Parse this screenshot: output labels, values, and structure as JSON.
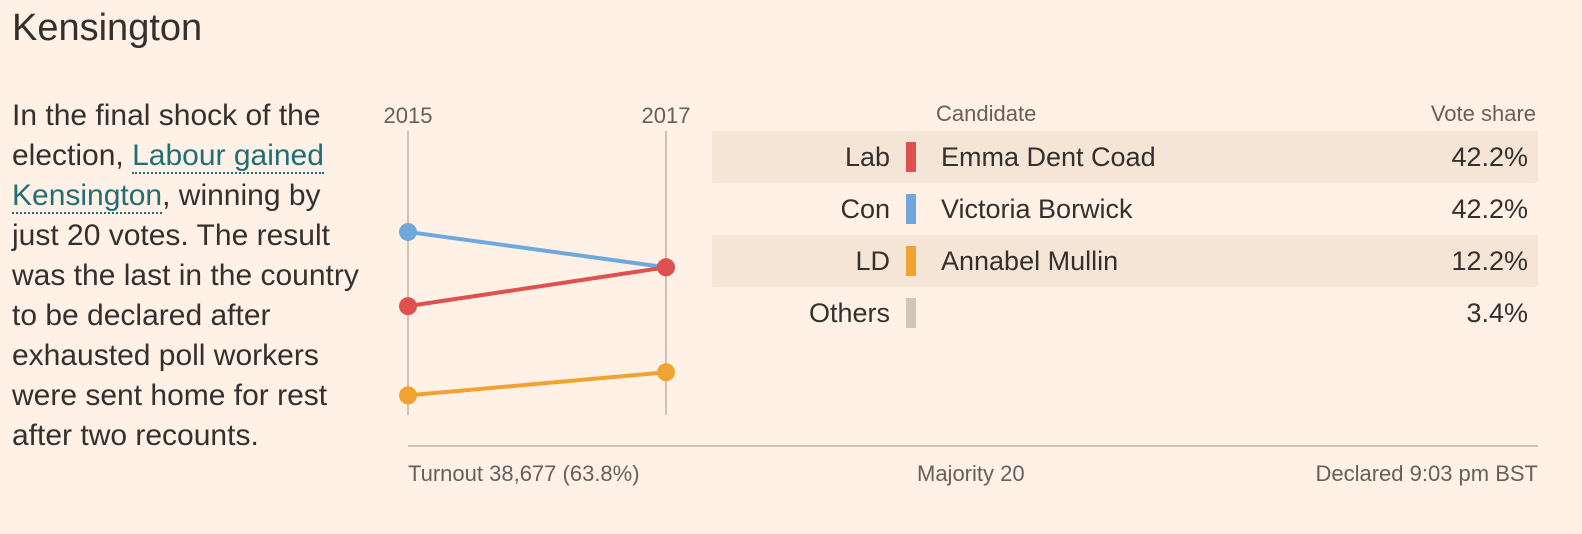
{
  "title": "Kensington",
  "description": {
    "before": "In the final shock of the election, ",
    "link": "Labour gained Kensington",
    "after": ", winning by just 20 votes. The result was the last in the country to be declared after exhausted poll workers were sent home for rest after two recounts."
  },
  "chart_data": {
    "type": "line",
    "subtype": "slope",
    "categories": [
      "2015",
      "2017"
    ],
    "series": [
      {
        "name": "Con",
        "color": "#6fa8dc",
        "values": [
          52.3,
          42.2
        ]
      },
      {
        "name": "Lab",
        "color": "#e05050",
        "values": [
          31.1,
          42.2
        ]
      },
      {
        "name": "LD",
        "color": "#f0a330",
        "values": [
          5.6,
          12.2
        ]
      }
    ],
    "ylim": [
      0,
      80
    ]
  },
  "table": {
    "header_candidate": "Candidate",
    "header_share": "Vote share",
    "rows": [
      {
        "party": "Lab",
        "color": "#e05050",
        "candidate": "Emma Dent Coad",
        "share": "42.2%"
      },
      {
        "party": "Con",
        "color": "#6fa8dc",
        "candidate": "Victoria Borwick",
        "share": "42.2%"
      },
      {
        "party": "LD",
        "color": "#f0a330",
        "candidate": "Annabel Mullin",
        "share": "12.2%"
      },
      {
        "party": "Others",
        "color": "#cec6b9",
        "candidate": "",
        "share": "3.4%"
      }
    ]
  },
  "footer": {
    "turnout": "Turnout 38,677 (63.8%)",
    "majority": "Majority 20",
    "declared": "Declared 9:03 pm BST"
  }
}
